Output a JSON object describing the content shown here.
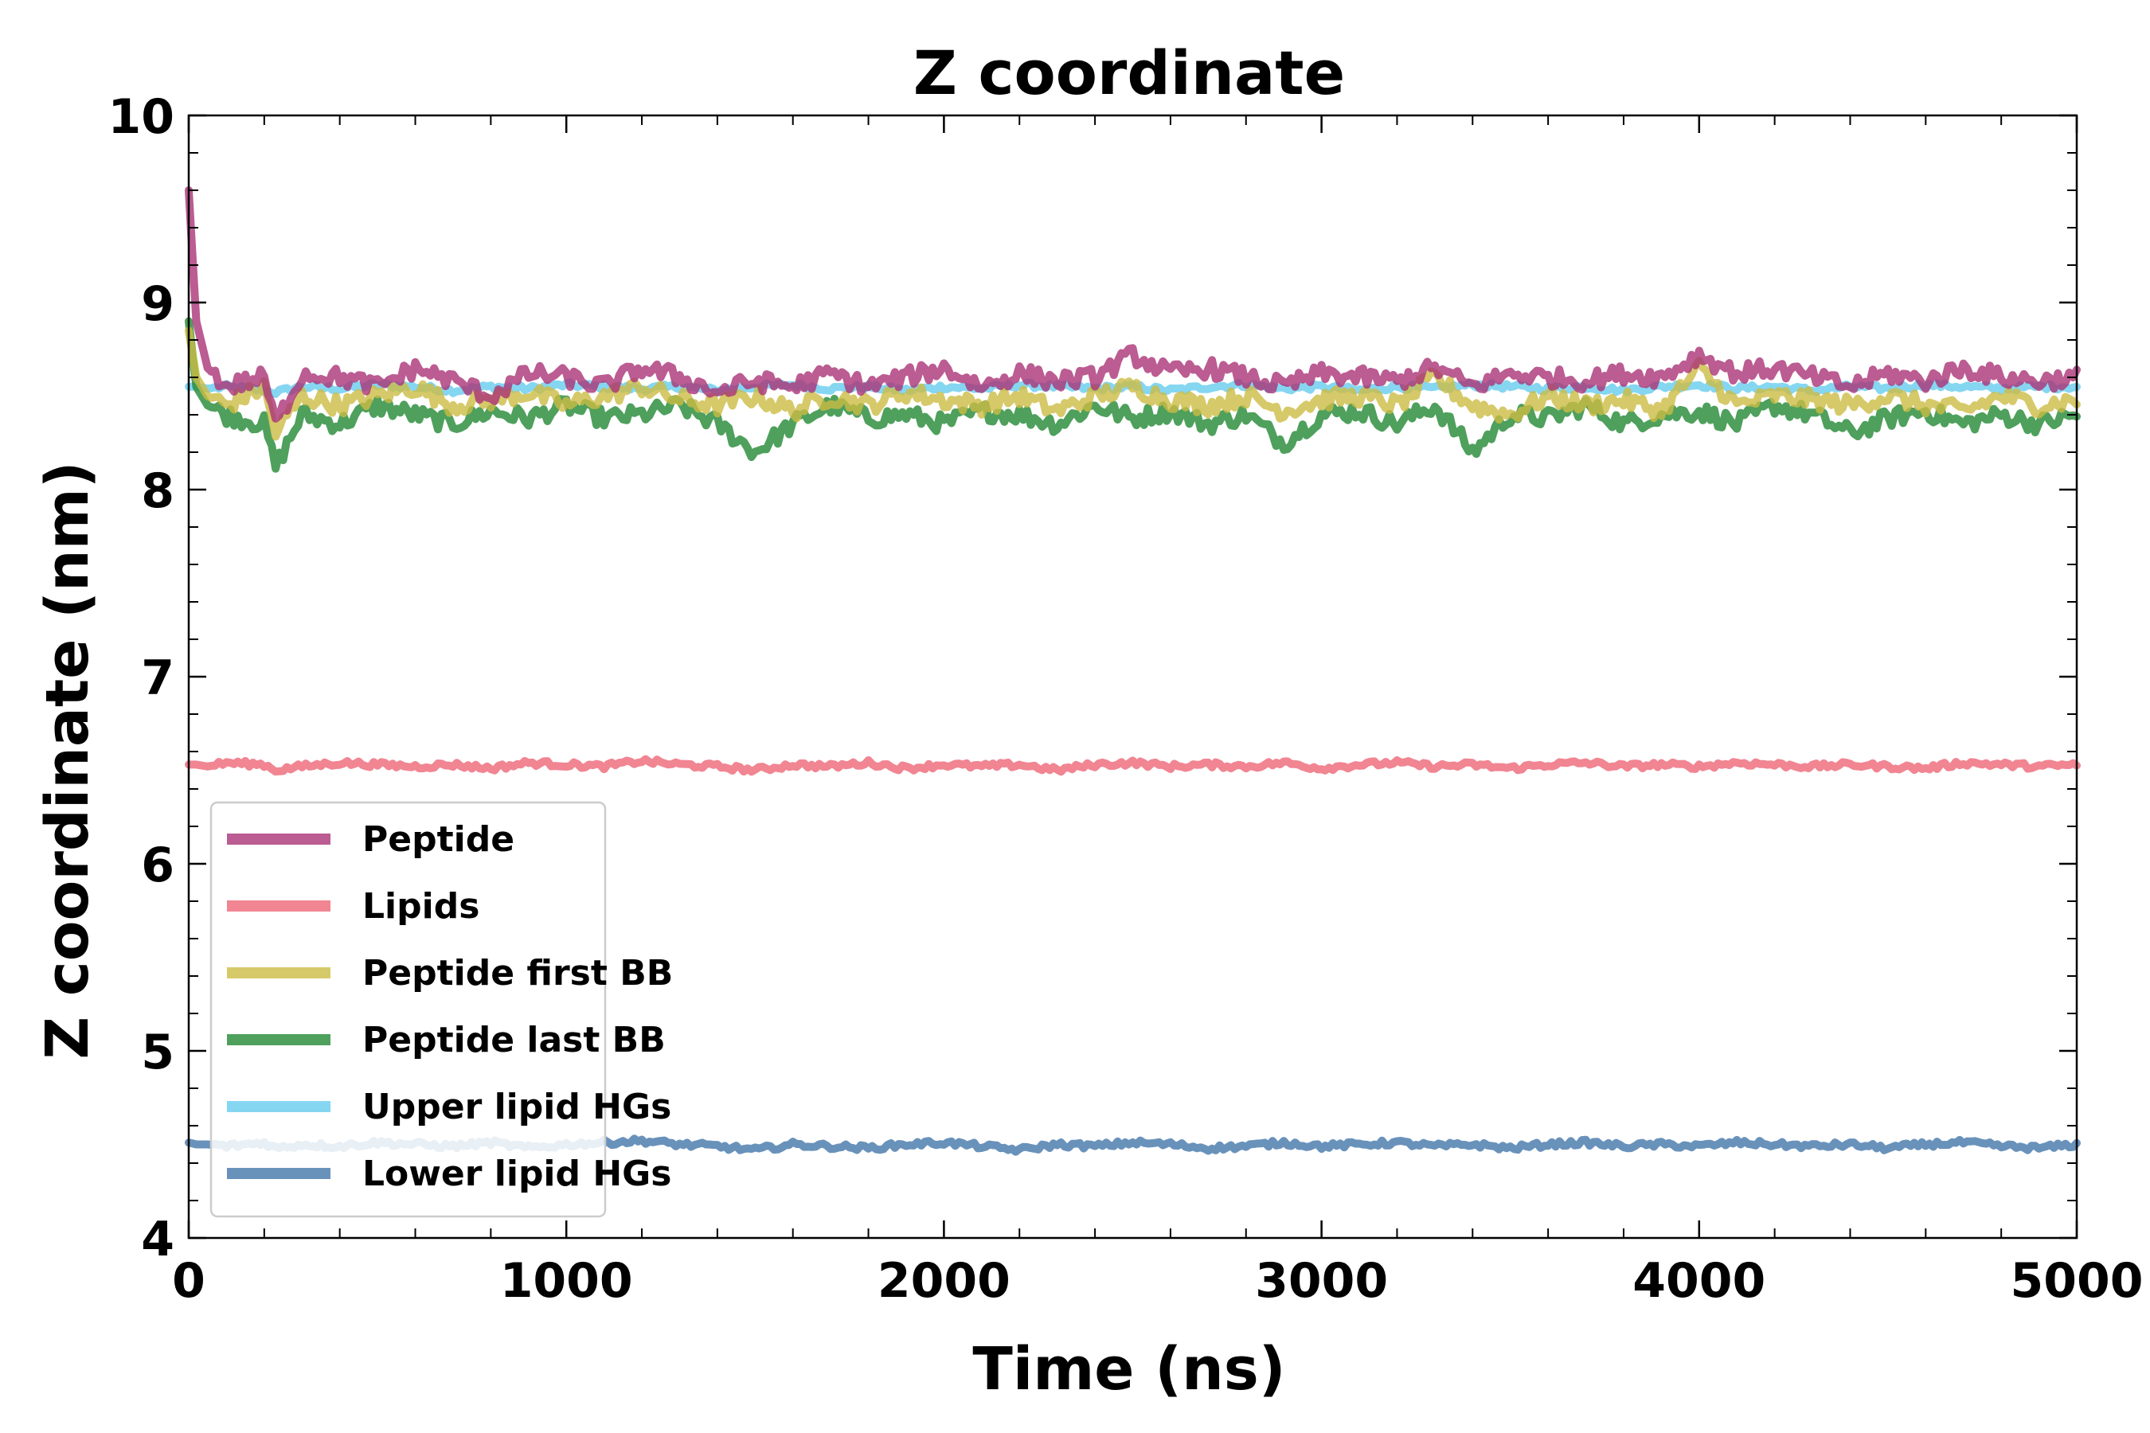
{
  "chart_data": {
    "type": "line",
    "title": "Z coordinate",
    "xlabel": "Time (ns)",
    "ylabel": "Z coordinate (nm)",
    "xlim": [
      0,
      5000
    ],
    "ylim": [
      4,
      10
    ],
    "xticks": [
      0,
      1000,
      2000,
      3000,
      4000,
      5000
    ],
    "yticks": [
      4,
      5,
      6,
      7,
      8,
      9,
      10
    ],
    "grid": false,
    "legend_position": "lower-left",
    "x": [
      0,
      20,
      50,
      100,
      200,
      230,
      300,
      400,
      500,
      600,
      700,
      800,
      900,
      1000,
      1100,
      1200,
      1300,
      1400,
      1500,
      1600,
      1700,
      1800,
      1900,
      2000,
      2100,
      2200,
      2300,
      2400,
      2500,
      2600,
      2700,
      2800,
      2900,
      3000,
      3100,
      3200,
      3300,
      3400,
      3500,
      3600,
      3700,
      3800,
      3900,
      4000,
      4100,
      4200,
      4300,
      4400,
      4500,
      4600,
      4700,
      4800,
      4900,
      5000
    ],
    "series": [
      {
        "name": "Peptide",
        "color": "#AA3377",
        "values": [
          9.6,
          8.9,
          8.65,
          8.55,
          8.6,
          8.35,
          8.62,
          8.6,
          8.55,
          8.65,
          8.58,
          8.5,
          8.62,
          8.6,
          8.55,
          8.65,
          8.6,
          8.52,
          8.58,
          8.55,
          8.62,
          8.55,
          8.6,
          8.65,
          8.55,
          8.62,
          8.58,
          8.6,
          8.72,
          8.62,
          8.65,
          8.6,
          8.55,
          8.62,
          8.6,
          8.58,
          8.65,
          8.55,
          8.62,
          8.6,
          8.58,
          8.62,
          8.6,
          8.72,
          8.62,
          8.65,
          8.6,
          8.55,
          8.62,
          8.58,
          8.65,
          8.6,
          8.58,
          8.6
        ]
      },
      {
        "name": "Lipids",
        "color": "#EE6677",
        "values": [
          6.53,
          6.53,
          6.52,
          6.54,
          6.53,
          6.5,
          6.52,
          6.54,
          6.53,
          6.52,
          6.53,
          6.51,
          6.54,
          6.53,
          6.52,
          6.55,
          6.53,
          6.52,
          6.5,
          6.53,
          6.52,
          6.54,
          6.51,
          6.53,
          6.52,
          6.53,
          6.5,
          6.53,
          6.54,
          6.52,
          6.53,
          6.52,
          6.54,
          6.51,
          6.53,
          6.54,
          6.52,
          6.53,
          6.51,
          6.53,
          6.54,
          6.52,
          6.53,
          6.52,
          6.54,
          6.53,
          6.52,
          6.53,
          6.52,
          6.51,
          6.54,
          6.53,
          6.52,
          6.53
        ]
      },
      {
        "name": "Peptide first BB",
        "color": "#CCBB44",
        "values": [
          8.85,
          8.6,
          8.5,
          8.45,
          8.55,
          8.3,
          8.5,
          8.45,
          8.5,
          8.55,
          8.45,
          8.48,
          8.52,
          8.45,
          8.5,
          8.55,
          8.48,
          8.45,
          8.5,
          8.42,
          8.5,
          8.45,
          8.52,
          8.48,
          8.45,
          8.5,
          8.42,
          8.5,
          8.55,
          8.48,
          8.45,
          8.5,
          8.42,
          8.48,
          8.5,
          8.45,
          8.6,
          8.45,
          8.4,
          8.5,
          8.45,
          8.48,
          8.42,
          8.65,
          8.45,
          8.5,
          8.48,
          8.45,
          8.5,
          8.45,
          8.42,
          8.5,
          8.45,
          8.48
        ]
      },
      {
        "name": "Peptide last BB",
        "color": "#228833",
        "values": [
          8.9,
          8.55,
          8.45,
          8.4,
          8.35,
          8.12,
          8.4,
          8.35,
          8.45,
          8.4,
          8.35,
          8.42,
          8.38,
          8.45,
          8.38,
          8.4,
          8.45,
          8.35,
          8.2,
          8.35,
          8.45,
          8.38,
          8.4,
          8.35,
          8.42,
          8.4,
          8.35,
          8.45,
          8.38,
          8.42,
          8.35,
          8.4,
          8.25,
          8.4,
          8.42,
          8.35,
          8.45,
          8.2,
          8.4,
          8.38,
          8.45,
          8.35,
          8.4,
          8.42,
          8.35,
          8.45,
          8.4,
          8.3,
          8.38,
          8.42,
          8.35,
          8.4,
          8.35,
          8.4
        ]
      },
      {
        "name": "Upper lipid HGs",
        "color": "#66CCEE",
        "values": [
          8.55,
          8.55,
          8.54,
          8.55,
          8.53,
          8.52,
          8.55,
          8.54,
          8.56,
          8.55,
          8.53,
          8.55,
          8.54,
          8.56,
          8.55,
          8.54,
          8.55,
          8.53,
          8.55,
          8.56,
          8.54,
          8.55,
          8.53,
          8.55,
          8.54,
          8.56,
          8.55,
          8.54,
          8.55,
          8.53,
          8.55,
          8.56,
          8.54,
          8.55,
          8.53,
          8.55,
          8.54,
          8.56,
          8.55,
          8.54,
          8.55,
          8.53,
          8.55,
          8.56,
          8.54,
          8.55,
          8.53,
          8.55,
          8.54,
          8.56,
          8.55,
          8.54,
          8.55,
          8.55
        ]
      },
      {
        "name": "Lower lipid HGs",
        "color": "#4477AA",
        "values": [
          4.51,
          4.5,
          4.5,
          4.49,
          4.51,
          4.48,
          4.5,
          4.49,
          4.51,
          4.5,
          4.49,
          4.51,
          4.48,
          4.5,
          4.51,
          4.52,
          4.5,
          4.49,
          4.47,
          4.5,
          4.49,
          4.48,
          4.5,
          4.51,
          4.49,
          4.47,
          4.5,
          4.49,
          4.51,
          4.5,
          4.48,
          4.49,
          4.51,
          4.49,
          4.5,
          4.51,
          4.49,
          4.5,
          4.48,
          4.5,
          4.51,
          4.49,
          4.5,
          4.49,
          4.51,
          4.5,
          4.49,
          4.5,
          4.48,
          4.5,
          4.51,
          4.49,
          4.48,
          4.5
        ]
      }
    ]
  }
}
